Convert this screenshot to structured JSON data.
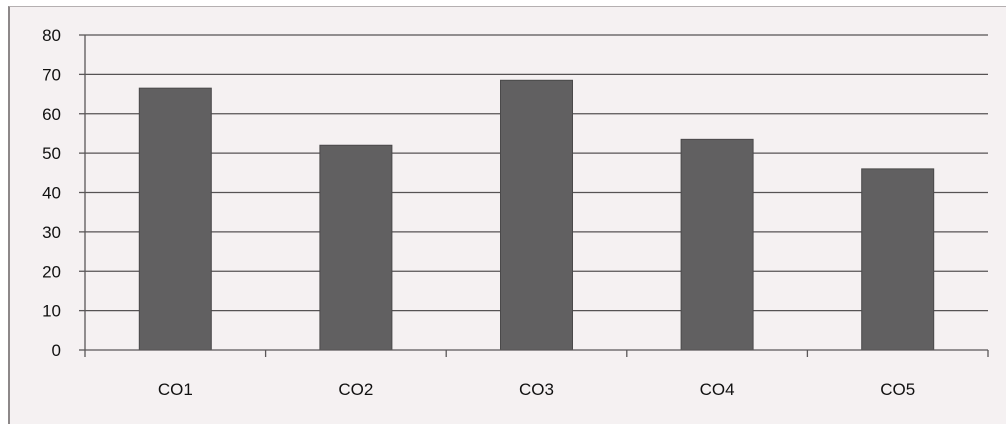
{
  "chart_data": {
    "type": "bar",
    "categories": [
      "CO1",
      "CO2",
      "CO3",
      "CO4",
      "CO5"
    ],
    "values": [
      66.5,
      52,
      68.5,
      53.5,
      46
    ],
    "ylim": [
      0,
      80
    ],
    "yticks": [
      "0",
      "10",
      "20",
      "30",
      "40",
      "50",
      "60",
      "70",
      "80"
    ],
    "grid": true,
    "legend": "none",
    "colors": {
      "bar": "#616061",
      "background": "#f5f1f2",
      "grid": "#565354"
    }
  }
}
